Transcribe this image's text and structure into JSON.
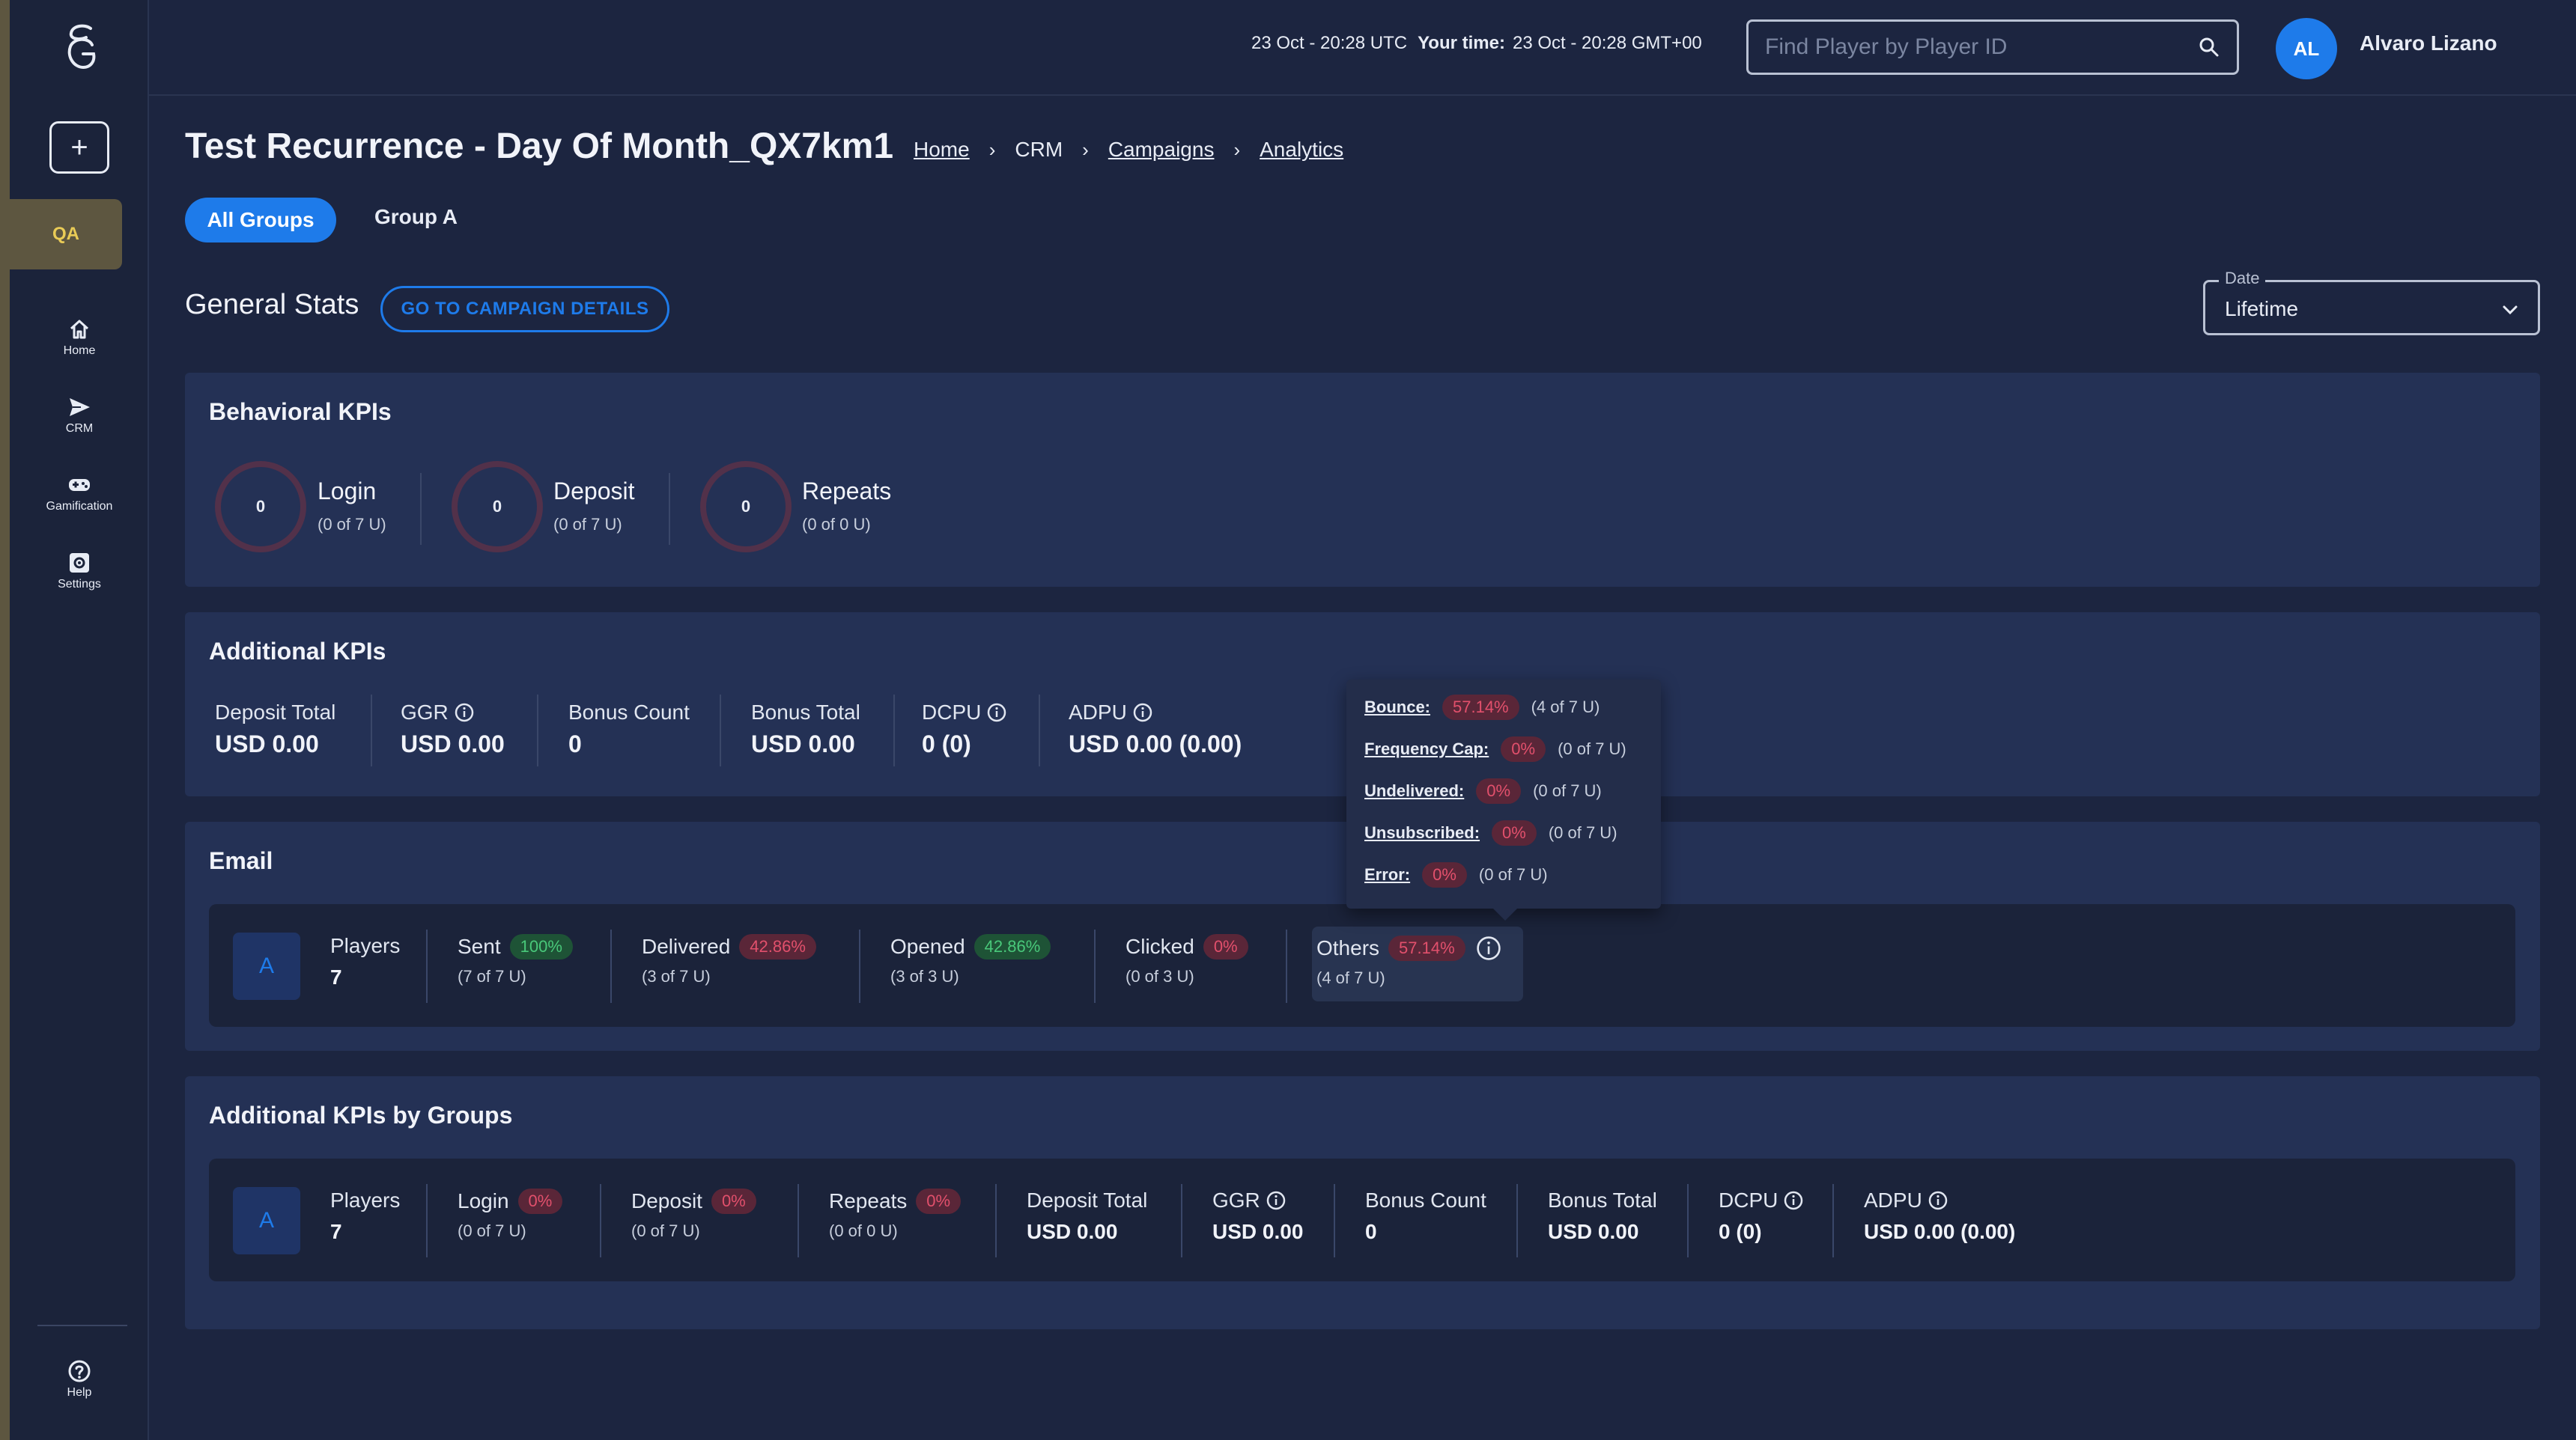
{
  "header": {
    "utc_time": "23 Oct - 20:28 UTC",
    "your_time_label": "Your time:",
    "local_time": "23 Oct - 20:28 GMT+00",
    "search_placeholder": "Find Player by Player ID",
    "user_initials": "AL",
    "user_name": "Alvaro Lizano"
  },
  "sidebar": {
    "env_badge": "QA",
    "items": [
      {
        "label": "Home",
        "icon": "home-icon"
      },
      {
        "label": "CRM",
        "icon": "send-icon"
      },
      {
        "label": "Gamification",
        "icon": "gamepad-icon"
      },
      {
        "label": "Settings",
        "icon": "settings-icon"
      }
    ],
    "help_label": "Help"
  },
  "page": {
    "title": "Test Recurrence - Day Of Month_QX7km1",
    "breadcrumb": [
      "Home",
      "CRM",
      "Campaigns",
      "Analytics"
    ],
    "tabs": [
      "All Groups",
      "Group A"
    ],
    "general_stats_title": "General Stats",
    "campaign_details_link": "GO TO CAMPAIGN DETAILS",
    "date_label": "Date",
    "date_value": "Lifetime"
  },
  "behavioral": {
    "title": "Behavioral KPIs",
    "items": [
      {
        "value": "0",
        "name": "Login",
        "sub": "(0 of 7 U)"
      },
      {
        "value": "0",
        "name": "Deposit",
        "sub": "(0 of 7 U)"
      },
      {
        "value": "0",
        "name": "Repeats",
        "sub": "(0 of 0 U)"
      }
    ]
  },
  "additional": {
    "title": "Additional KPIs",
    "items": [
      {
        "label": "Deposit Total",
        "value": "USD 0.00"
      },
      {
        "label": "GGR",
        "value": "USD 0.00"
      },
      {
        "label": "Bonus Count",
        "value": "0"
      },
      {
        "label": "Bonus Total",
        "value": "USD 0.00"
      },
      {
        "label": "DCPU",
        "value": "0 (0)"
      },
      {
        "label": "ADPU",
        "value": "USD 0.00 (0.00)"
      }
    ]
  },
  "email": {
    "title": "Email",
    "group": "A",
    "players_label": "Players",
    "players_value": "7",
    "metrics": [
      {
        "label": "Sent",
        "pct": "100%",
        "sub": "(7 of 7 U)"
      },
      {
        "label": "Delivered",
        "pct": "42.86%",
        "sub": "(3 of 7 U)"
      },
      {
        "label": "Opened",
        "pct": "42.86%",
        "sub": "(3 of 3 U)"
      },
      {
        "label": "Clicked",
        "pct": "0%",
        "sub": "(0 of 3 U)"
      },
      {
        "label": "Others",
        "pct": "57.14%",
        "sub": "(4 of 7 U)"
      }
    ]
  },
  "tooltip": {
    "rows": [
      {
        "label": "Bounce:",
        "pct": "57.14%",
        "count": "(4 of 7 U)"
      },
      {
        "label": "Frequency Cap:",
        "pct": "0%",
        "count": "(0 of 7 U)"
      },
      {
        "label": "Undelivered:",
        "pct": "0%",
        "count": "(0 of 7 U)"
      },
      {
        "label": "Unsubscribed:",
        "pct": "0%",
        "count": "(0 of 7 U)"
      },
      {
        "label": "Error:",
        "pct": "0%",
        "count": "(0 of 7 U)"
      }
    ]
  },
  "groups_kpis": {
    "title": "Additional KPIs by Groups",
    "group": "A",
    "players_label": "Players",
    "players_value": "7",
    "behavior": [
      {
        "label": "Login",
        "pct": "0%",
        "sub": "(0 of 7 U)"
      },
      {
        "label": "Deposit",
        "pct": "0%",
        "sub": "(0 of 7 U)"
      },
      {
        "label": "Repeats",
        "pct": "0%",
        "sub": "(0 of 0 U)"
      }
    ],
    "money": [
      {
        "label": "Deposit Total",
        "value": "USD 0.00"
      },
      {
        "label": "GGR",
        "value": "USD 0.00"
      },
      {
        "label": "Bonus Count",
        "value": "0"
      },
      {
        "label": "Bonus Total",
        "value": "USD 0.00"
      },
      {
        "label": "DCPU",
        "value": "0 (0)"
      },
      {
        "label": "ADPU",
        "value": "USD 0.00 (0.00)"
      }
    ]
  },
  "colors": {
    "accent": "#1e7bea",
    "background": "#1c2540",
    "card": "#243155",
    "positive": "#49c87a",
    "negative": "#e2506c",
    "env_badge": "#e9cb56"
  }
}
